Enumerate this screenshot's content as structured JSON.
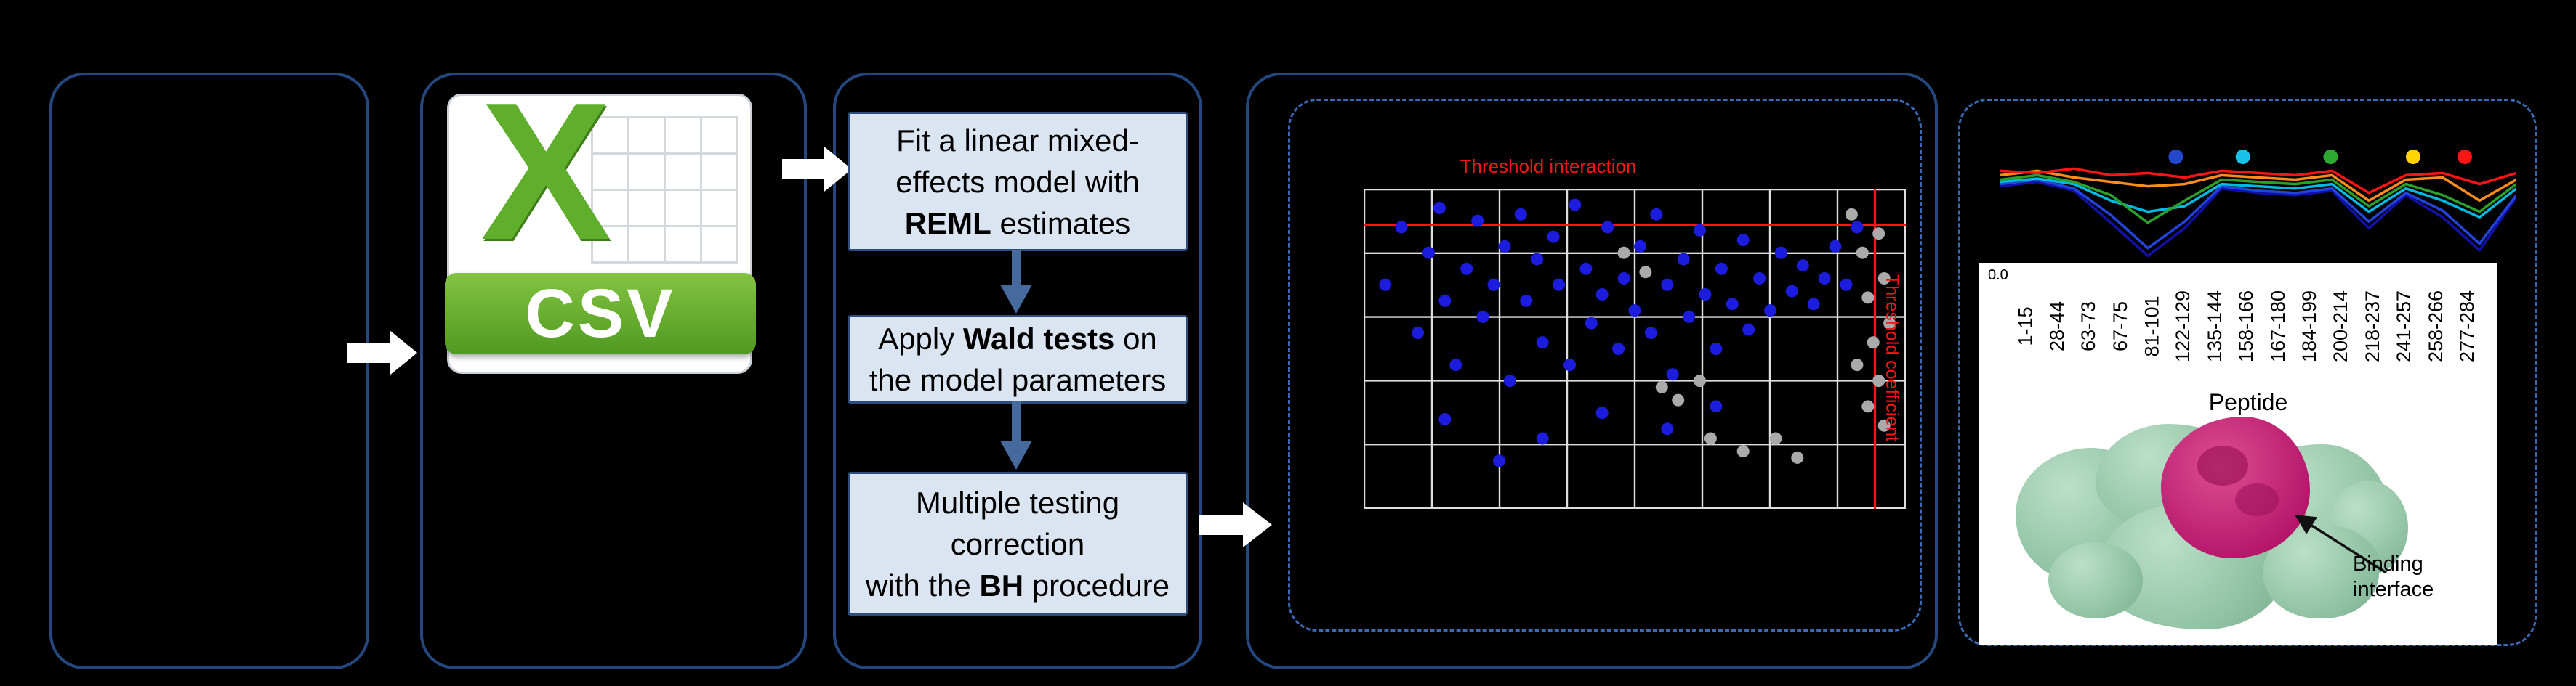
{
  "colors": {
    "background": "#000000",
    "stage_box_border": "#25477f",
    "dashed_box_border": "#3a69b5",
    "step_fill": "#dbe5f2",
    "step_border": "#2d4d7f",
    "flow_arrow": "#46699e",
    "white_arrow": "#ffffff",
    "threshold_red": "#ff1414",
    "csv_green": "#5fae2c"
  },
  "pipeline": {
    "csv_icon": {
      "letter": "X",
      "label": "CSV"
    },
    "steps": {
      "step1": {
        "l1": "Fit a linear mixed-",
        "l2": "effects model with",
        "l3b": "REML",
        "l3": " estimates"
      },
      "step2": {
        "l1a": "Apply ",
        "l1b": "Wald tests",
        "l1c": " on",
        "l2": "the model parameters"
      },
      "step3": {
        "l1": "Multiple testing",
        "l2": "correction",
        "l3a": "with the ",
        "l3b": "BH",
        "l3c": " procedure"
      }
    }
  },
  "chart_data": [
    {
      "type": "scatter",
      "title": "Threshold interaction",
      "grid": {
        "v_lines": 9,
        "h_lines": 6,
        "color": "#dedede",
        "background": "#000000"
      },
      "threshold_lines": {
        "color": "#ff1414",
        "horizontal_y_frac": 0.113,
        "vertical_x_frac": 0.943,
        "horizontal_label": "Threshold interaction",
        "vertical_label": "Threshold coefficient"
      },
      "point_radius": 8.5,
      "series": [
        {
          "name": "gray-points",
          "color": "#aaaaaa",
          "points": [
            [
              0.9,
              0.08
            ],
            [
              0.92,
              0.2
            ],
            [
              0.93,
              0.34
            ],
            [
              0.94,
              0.48
            ],
            [
              0.95,
              0.6
            ],
            [
              0.96,
              0.28
            ],
            [
              0.97,
              0.42
            ],
            [
              0.95,
              0.14
            ],
            [
              0.93,
              0.68
            ],
            [
              0.96,
              0.74
            ],
            [
              0.91,
              0.55
            ],
            [
              0.55,
              0.62
            ],
            [
              0.58,
              0.66
            ],
            [
              0.62,
              0.6
            ],
            [
              0.48,
              0.2
            ],
            [
              0.52,
              0.26
            ],
            [
              0.64,
              0.78
            ],
            [
              0.7,
              0.82
            ],
            [
              0.76,
              0.78
            ],
            [
              0.8,
              0.84
            ]
          ]
        },
        {
          "name": "blue-points",
          "color": "#1c1cdf",
          "points": [
            [
              0.04,
              0.3
            ],
            [
              0.07,
              0.12
            ],
            [
              0.1,
              0.45
            ],
            [
              0.12,
              0.2
            ],
            [
              0.14,
              0.06
            ],
            [
              0.15,
              0.35
            ],
            [
              0.17,
              0.55
            ],
            [
              0.19,
              0.25
            ],
            [
              0.21,
              0.1
            ],
            [
              0.22,
              0.4
            ],
            [
              0.24,
              0.3
            ],
            [
              0.26,
              0.18
            ],
            [
              0.27,
              0.6
            ],
            [
              0.29,
              0.08
            ],
            [
              0.3,
              0.35
            ],
            [
              0.32,
              0.22
            ],
            [
              0.33,
              0.48
            ],
            [
              0.35,
              0.15
            ],
            [
              0.36,
              0.3
            ],
            [
              0.38,
              0.55
            ],
            [
              0.39,
              0.05
            ],
            [
              0.41,
              0.25
            ],
            [
              0.42,
              0.42
            ],
            [
              0.44,
              0.33
            ],
            [
              0.45,
              0.12
            ],
            [
              0.47,
              0.5
            ],
            [
              0.48,
              0.28
            ],
            [
              0.5,
              0.38
            ],
            [
              0.51,
              0.18
            ],
            [
              0.53,
              0.45
            ],
            [
              0.54,
              0.08
            ],
            [
              0.56,
              0.3
            ],
            [
              0.57,
              0.58
            ],
            [
              0.59,
              0.22
            ],
            [
              0.6,
              0.4
            ],
            [
              0.62,
              0.13
            ],
            [
              0.63,
              0.33
            ],
            [
              0.65,
              0.5
            ],
            [
              0.66,
              0.25
            ],
            [
              0.68,
              0.36
            ],
            [
              0.7,
              0.16
            ],
            [
              0.71,
              0.44
            ],
            [
              0.73,
              0.28
            ],
            [
              0.75,
              0.38
            ],
            [
              0.77,
              0.2
            ],
            [
              0.79,
              0.32
            ],
            [
              0.81,
              0.24
            ],
            [
              0.83,
              0.36
            ],
            [
              0.85,
              0.28
            ],
            [
              0.87,
              0.18
            ],
            [
              0.89,
              0.3
            ],
            [
              0.91,
              0.12
            ],
            [
              0.33,
              0.78
            ],
            [
              0.44,
              0.7
            ],
            [
              0.56,
              0.75
            ],
            [
              0.25,
              0.85
            ],
            [
              0.65,
              0.68
            ],
            [
              0.15,
              0.72
            ]
          ]
        }
      ]
    },
    {
      "type": "line",
      "x_axis_label": "Peptide",
      "y_tick_labels": [
        "0.0"
      ],
      "categories": [
        "1-15",
        "28-44",
        "63-73",
        "67-75",
        "81-101",
        "122-129",
        "135-144",
        "158-166",
        "167-180",
        "184-199",
        "200-214",
        "218-237",
        "241-257",
        "258-266",
        "277-284"
      ],
      "series": [
        {
          "name": "navy",
          "color": "#1111aa",
          "values": [
            0.68,
            0.72,
            0.64,
            0.35,
            0.05,
            0.3,
            0.66,
            0.62,
            0.6,
            0.64,
            0.3,
            0.6,
            0.4,
            0.1,
            0.58
          ]
        },
        {
          "name": "blue",
          "color": "#2244dd",
          "values": [
            0.7,
            0.74,
            0.66,
            0.42,
            0.12,
            0.36,
            0.68,
            0.64,
            0.62,
            0.66,
            0.36,
            0.62,
            0.46,
            0.16,
            0.6
          ]
        },
        {
          "name": "cyan",
          "color": "#00b9e0",
          "values": [
            0.72,
            0.75,
            0.7,
            0.55,
            0.45,
            0.5,
            0.7,
            0.68,
            0.66,
            0.7,
            0.45,
            0.66,
            0.55,
            0.4,
            0.66
          ]
        },
        {
          "name": "green",
          "color": "#2aa02a",
          "values": [
            0.74,
            0.78,
            0.72,
            0.6,
            0.35,
            0.55,
            0.74,
            0.72,
            0.7,
            0.74,
            0.5,
            0.7,
            0.6,
            0.45,
            0.7
          ]
        },
        {
          "name": "orange",
          "color": "#ff8c1a",
          "values": [
            0.78,
            0.82,
            0.76,
            0.72,
            0.68,
            0.7,
            0.78,
            0.76,
            0.74,
            0.78,
            0.55,
            0.74,
            0.76,
            0.55,
            0.74
          ]
        },
        {
          "name": "red",
          "color": "#ff1414",
          "values": [
            0.82,
            0.8,
            0.84,
            0.78,
            0.8,
            0.76,
            0.82,
            0.8,
            0.78,
            0.82,
            0.62,
            0.78,
            0.8,
            0.7,
            0.8
          ]
        }
      ],
      "markers_above": [
        {
          "color": "#2447d0",
          "x_frac": 0.34
        },
        {
          "color": "#17c3e8",
          "x_frac": 0.47
        },
        {
          "color": "#2fa832",
          "x_frac": 0.64
        },
        {
          "color": "#ffd400",
          "x_frac": 0.8
        },
        {
          "color": "#ff1414",
          "x_frac": 0.9
        }
      ]
    }
  ],
  "structure_panel": {
    "binding_line1": "Binding",
    "binding_line2": "interface"
  }
}
